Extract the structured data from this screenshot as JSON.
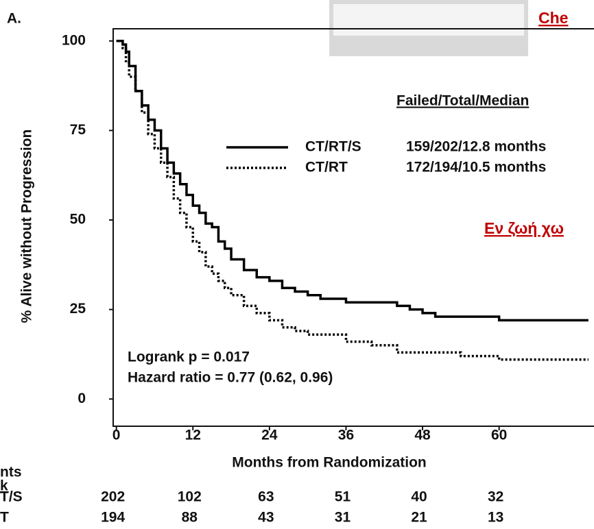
{
  "chart_data": {
    "type": "line",
    "panel_label": "A.",
    "title": "Che",
    "subtitle": "Εν ζωή χω",
    "y_label": "% Alive without Progression",
    "x_label": "Months from Randomization",
    "legend_header": "Failed/Total/Median",
    "xlim": [
      -0.5,
      75
    ],
    "ylim": [
      -7.6,
      103.4
    ],
    "xticks": [
      0,
      12,
      24,
      36,
      48,
      60
    ],
    "yticks": [
      0,
      25,
      50,
      75,
      100
    ],
    "series": [
      {
        "name": "CT/RT/S",
        "stats": "159/202/12.8 months",
        "color": "#000000",
        "style": "solid",
        "x": [
          0,
          1,
          1.5,
          2,
          3,
          4,
          5,
          6,
          7,
          8,
          9,
          10,
          11,
          12,
          13,
          14,
          15,
          16,
          17,
          18,
          20,
          22,
          24,
          26,
          28,
          30,
          32,
          36,
          42,
          44,
          46,
          48,
          50,
          54,
          60,
          74
        ],
        "values": [
          100,
          99,
          97,
          93,
          86,
          82,
          78,
          75,
          70,
          66,
          63,
          60,
          57,
          54,
          52,
          49,
          48,
          44,
          42,
          39,
          36,
          34,
          33,
          31,
          30,
          29,
          28,
          27,
          27,
          26,
          25,
          24,
          23,
          23,
          22,
          22
        ]
      },
      {
        "name": "CT/RT",
        "stats": "172/194/10.5 months",
        "color": "#000000",
        "style": "dotted",
        "x": [
          0,
          1,
          1.5,
          2,
          3,
          4,
          5,
          6,
          7,
          8,
          9,
          10,
          11,
          12,
          13,
          14,
          15,
          16,
          17,
          18,
          20,
          22,
          24,
          26,
          28,
          30,
          33,
          36,
          40,
          44,
          48,
          54,
          60,
          74
        ],
        "values": [
          100,
          98,
          94,
          90,
          86,
          80,
          74,
          70,
          66,
          62,
          56,
          52,
          48,
          44,
          41,
          37,
          35,
          33,
          31,
          29,
          26,
          24,
          22,
          20,
          19,
          18,
          18,
          16,
          15,
          13,
          13,
          12,
          11,
          11
        ]
      }
    ],
    "annotations": [
      "Logrank p = 0.017",
      "Hazard ratio = 0.77 (0.62, 0.96)"
    ],
    "risk_table": {
      "header": [
        "nts",
        "k"
      ],
      "rows": [
        {
          "label": "T/S",
          "values": [
            "202",
            "102",
            "63",
            "51",
            "40",
            "32"
          ]
        },
        {
          "label": "T",
          "values": [
            "194",
            "88",
            "43",
            "31",
            "21",
            "13"
          ]
        }
      ]
    }
  }
}
